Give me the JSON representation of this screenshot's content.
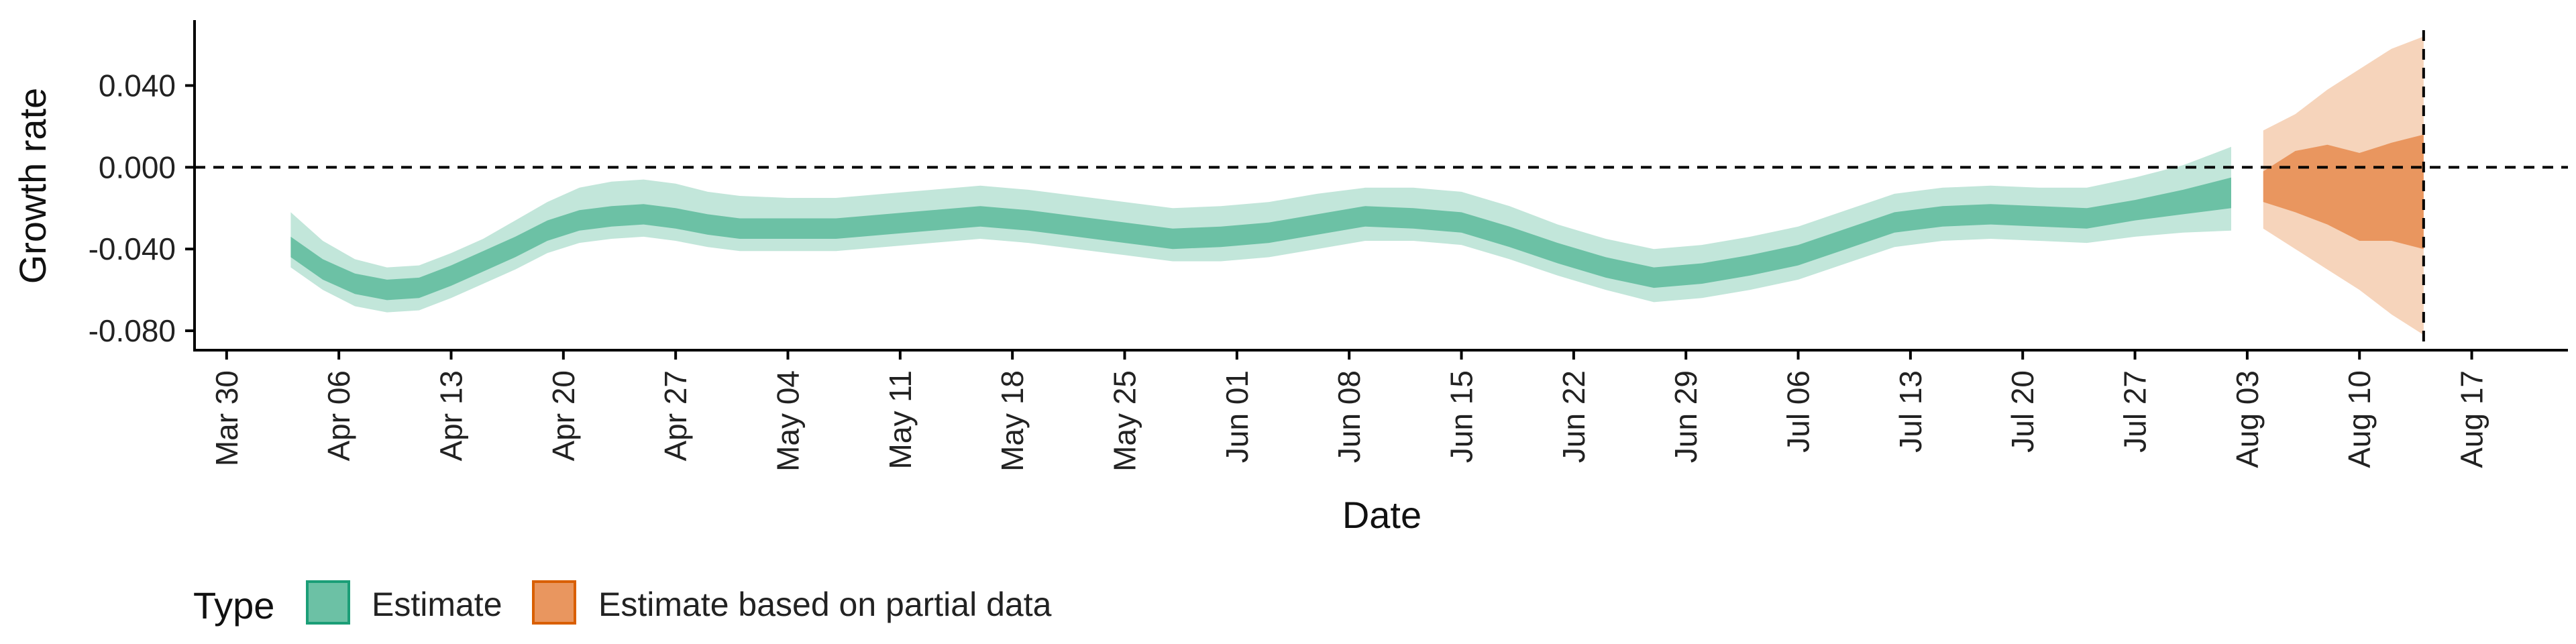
{
  "chart_data": {
    "type": "area",
    "xlabel": "Date",
    "ylabel": "Growth rate",
    "x_tick_labels": [
      "Mar 30",
      "Apr 06",
      "Apr 13",
      "Apr 20",
      "Apr 27",
      "May 04",
      "May 11",
      "May 18",
      "May 25",
      "Jun 01",
      "Jun 08",
      "Jun 15",
      "Jun 22",
      "Jun 29",
      "Jul 06",
      "Jul 13",
      "Jul 20",
      "Jul 27",
      "Aug 03",
      "Aug 10",
      "Aug 17"
    ],
    "x_tick_dates": [
      "2020-03-30",
      "2020-04-06",
      "2020-04-13",
      "2020-04-20",
      "2020-04-27",
      "2020-05-04",
      "2020-05-11",
      "2020-05-18",
      "2020-05-25",
      "2020-06-01",
      "2020-06-08",
      "2020-06-15",
      "2020-06-22",
      "2020-06-29",
      "2020-07-06",
      "2020-07-13",
      "2020-07-20",
      "2020-07-27",
      "2020-08-03",
      "2020-08-10",
      "2020-08-17"
    ],
    "y_ticks": [
      0.04,
      0.0,
      -0.04,
      -0.08
    ],
    "y_tick_labels": [
      "0.040",
      "0.000",
      "-0.040",
      "-0.080"
    ],
    "xlim": [
      "2020-03-28",
      "2020-08-23"
    ],
    "ylim": [
      -0.0895,
      0.072
    ],
    "reference_lines": {
      "horizontal_y": 0.0,
      "vertical_date": "2020-08-14"
    },
    "grid": false,
    "legend": {
      "title": "Type",
      "position": "bottom-left",
      "entries": [
        {
          "label": "Estimate",
          "fill": "#6cc1a5",
          "stroke": "#1b9e77"
        },
        {
          "label": "Estimate based on partial data",
          "fill": "#e9965f",
          "stroke": "#d95f02"
        }
      ]
    },
    "colors": {
      "estimate_inner": "#6cc1a5",
      "estimate_outer": "#c2e6da",
      "partial_inner": "#e9965f",
      "partial_outer": "#f6d4bb",
      "axis": "#000000"
    },
    "series": [
      {
        "name": "Estimate",
        "x": [
          "2020-04-03",
          "2020-04-05",
          "2020-04-07",
          "2020-04-09",
          "2020-04-11",
          "2020-04-13",
          "2020-04-15",
          "2020-04-17",
          "2020-04-19",
          "2020-04-21",
          "2020-04-23",
          "2020-04-25",
          "2020-04-27",
          "2020-04-29",
          "2020-05-01",
          "2020-05-04",
          "2020-05-07",
          "2020-05-10",
          "2020-05-13",
          "2020-05-16",
          "2020-05-19",
          "2020-05-22",
          "2020-05-25",
          "2020-05-28",
          "2020-05-31",
          "2020-06-03",
          "2020-06-06",
          "2020-06-09",
          "2020-06-12",
          "2020-06-15",
          "2020-06-18",
          "2020-06-21",
          "2020-06-24",
          "2020-06-27",
          "2020-06-30",
          "2020-07-03",
          "2020-07-06",
          "2020-07-09",
          "2020-07-12",
          "2020-07-15",
          "2020-07-18",
          "2020-07-21",
          "2020-07-24",
          "2020-07-27",
          "2020-07-30",
          "2020-08-02"
        ],
        "lower_outer": [
          -0.049,
          -0.06,
          -0.068,
          -0.071,
          -0.07,
          -0.064,
          -0.057,
          -0.05,
          -0.042,
          -0.037,
          -0.035,
          -0.034,
          -0.036,
          -0.039,
          -0.041,
          -0.041,
          -0.041,
          -0.039,
          -0.037,
          -0.035,
          -0.037,
          -0.04,
          -0.043,
          -0.046,
          -0.046,
          -0.044,
          -0.04,
          -0.036,
          -0.036,
          -0.038,
          -0.045,
          -0.053,
          -0.06,
          -0.066,
          -0.064,
          -0.06,
          -0.055,
          -0.047,
          -0.039,
          -0.036,
          -0.035,
          -0.036,
          -0.037,
          -0.034,
          -0.032,
          -0.031
        ],
        "lower_inner": [
          -0.044,
          -0.055,
          -0.062,
          -0.065,
          -0.064,
          -0.058,
          -0.051,
          -0.044,
          -0.036,
          -0.031,
          -0.029,
          -0.028,
          -0.03,
          -0.033,
          -0.035,
          -0.035,
          -0.035,
          -0.033,
          -0.031,
          -0.029,
          -0.031,
          -0.034,
          -0.037,
          -0.04,
          -0.039,
          -0.037,
          -0.033,
          -0.029,
          -0.03,
          -0.032,
          -0.039,
          -0.047,
          -0.054,
          -0.059,
          -0.057,
          -0.053,
          -0.048,
          -0.04,
          -0.032,
          -0.029,
          -0.028,
          -0.029,
          -0.03,
          -0.026,
          -0.023,
          -0.02
        ],
        "upper_inner": [
          -0.034,
          -0.045,
          -0.052,
          -0.055,
          -0.054,
          -0.048,
          -0.041,
          -0.034,
          -0.026,
          -0.021,
          -0.019,
          -0.018,
          -0.02,
          -0.023,
          -0.025,
          -0.025,
          -0.025,
          -0.023,
          -0.021,
          -0.019,
          -0.021,
          -0.024,
          -0.027,
          -0.03,
          -0.029,
          -0.027,
          -0.023,
          -0.019,
          -0.02,
          -0.022,
          -0.029,
          -0.037,
          -0.044,
          -0.049,
          -0.047,
          -0.043,
          -0.038,
          -0.03,
          -0.022,
          -0.019,
          -0.018,
          -0.019,
          -0.02,
          -0.016,
          -0.011,
          -0.005
        ],
        "upper_outer": [
          -0.022,
          -0.036,
          -0.045,
          -0.049,
          -0.048,
          -0.042,
          -0.035,
          -0.026,
          -0.017,
          -0.01,
          -0.007,
          -0.006,
          -0.008,
          -0.012,
          -0.014,
          -0.015,
          -0.015,
          -0.013,
          -0.011,
          -0.009,
          -0.011,
          -0.014,
          -0.017,
          -0.02,
          -0.019,
          -0.017,
          -0.013,
          -0.01,
          -0.01,
          -0.012,
          -0.019,
          -0.028,
          -0.035,
          -0.04,
          -0.038,
          -0.034,
          -0.029,
          -0.021,
          -0.013,
          -0.01,
          -0.009,
          -0.01,
          -0.01,
          -0.005,
          0.001,
          0.01
        ]
      },
      {
        "name": "Estimate based on partial data",
        "x": [
          "2020-08-04",
          "2020-08-06",
          "2020-08-08",
          "2020-08-10",
          "2020-08-12",
          "2020-08-14"
        ],
        "lower_outer": [
          -0.03,
          -0.04,
          -0.05,
          -0.06,
          -0.072,
          -0.082
        ],
        "lower_inner": [
          -0.017,
          -0.022,
          -0.028,
          -0.036,
          -0.036,
          -0.04
        ],
        "upper_inner": [
          -0.002,
          0.008,
          0.011,
          0.007,
          0.012,
          0.016
        ],
        "upper_outer": [
          0.018,
          0.026,
          0.038,
          0.048,
          0.058,
          0.064
        ]
      }
    ]
  }
}
